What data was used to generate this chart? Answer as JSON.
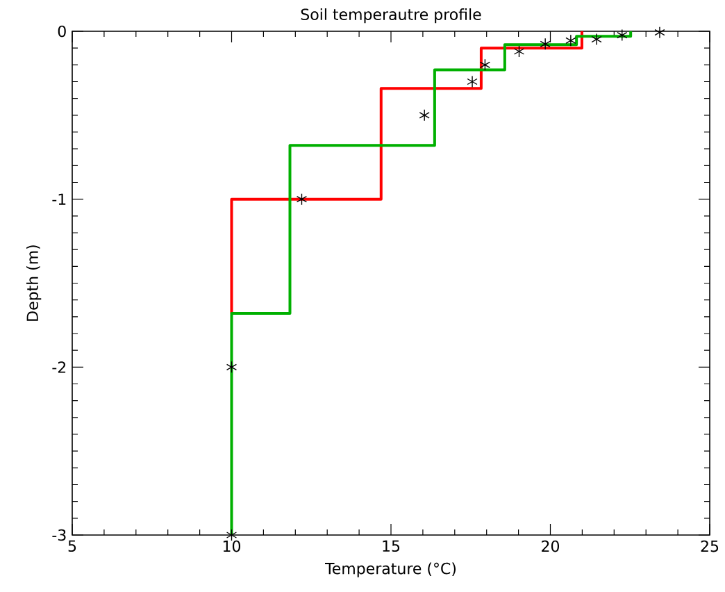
{
  "chart_data": {
    "type": "step",
    "title": "Soil temperautre profile",
    "xlabel": "Temperature (°C)",
    "ylabel": "Depth (m)",
    "xlim": [
      5,
      25
    ],
    "xticks": [
      5,
      10,
      15,
      20,
      25
    ],
    "ylim": [
      -3,
      0
    ],
    "yticks": [
      -3,
      -2,
      -1,
      0
    ],
    "series": [
      {
        "color": "#ff0000",
        "x": [
          10,
          14.69,
          17.83,
          20.99,
          20.99
        ],
        "values": [
          -1.68,
          -1.0,
          -0.34,
          -0.1,
          0
        ]
      },
      {
        "color": "#00b000",
        "x": [
          10,
          11.83,
          16.37,
          18.57,
          20.82,
          22.52,
          22.52
        ],
        "values": [
          -3,
          -1.68,
          -0.68,
          -0.23,
          -0.08,
          -0.03,
          0
        ]
      },
      {
        "type": "scatter",
        "color": "#000000",
        "marker": "cross",
        "x": [
          10,
          10,
          12.2,
          16.05,
          17.55,
          17.95,
          19.02,
          19.84,
          20.64,
          21.45,
          22.25,
          23.43
        ],
        "values": [
          -3,
          -2,
          -1,
          -0.5,
          -0.3,
          -0.2,
          -0.12,
          -0.076,
          -0.055,
          -0.048,
          -0.023,
          -0.007
        ]
      }
    ]
  }
}
